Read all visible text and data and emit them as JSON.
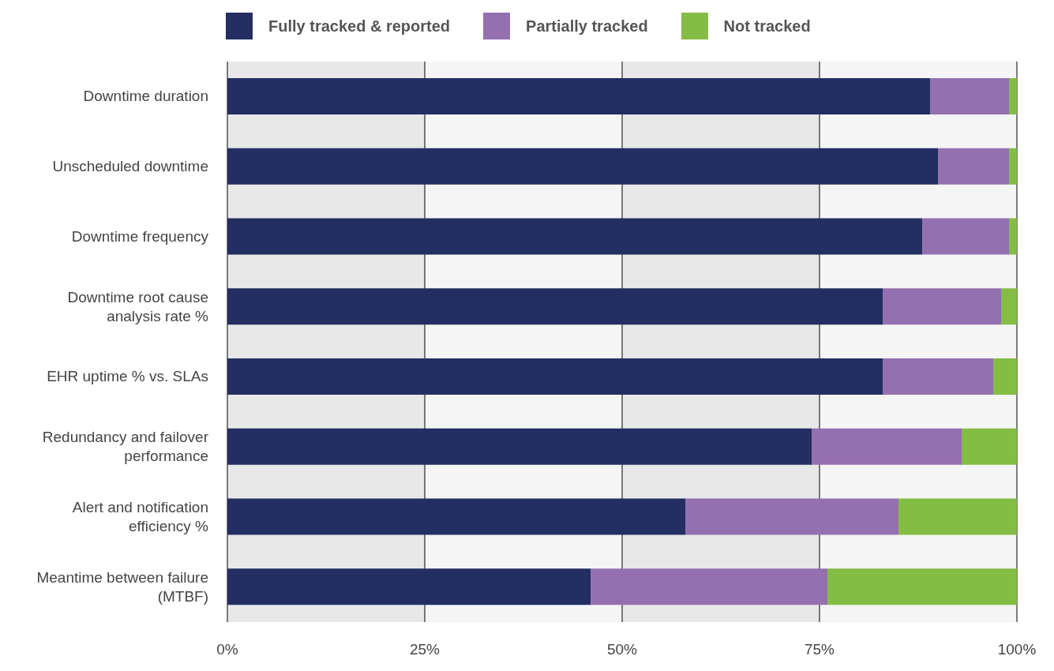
{
  "chart_data": {
    "type": "bar",
    "orientation": "horizontal",
    "stacked": true,
    "categories": [
      "Downtime duration",
      "Unscheduled downtime",
      "Downtime frequency",
      "Downtime root cause analysis rate %",
      "EHR uptime % vs. SLAs",
      "Redundancy and failover performance",
      "Alert and notification efficiency %",
      "Meantime between failure (MTBF)"
    ],
    "series": [
      {
        "name": "Fully tracked & reported",
        "color": "#232e62",
        "values": [
          89,
          90,
          88,
          83,
          83,
          74,
          58,
          46
        ]
      },
      {
        "name": "Partially tracked",
        "color": "#9570b0",
        "values": [
          10,
          9,
          11,
          15,
          14,
          19,
          27,
          30
        ]
      },
      {
        "name": "Not tracked",
        "color": "#84bd44",
        "values": [
          1,
          1,
          1,
          2,
          3,
          7,
          15,
          24
        ]
      }
    ],
    "xlim": [
      0,
      100
    ],
    "xticks": [
      {
        "value": 0,
        "label": "0%"
      },
      {
        "value": 25,
        "label": "25%"
      },
      {
        "value": 50,
        "label": "50%"
      },
      {
        "value": 75,
        "label": "75%"
      },
      {
        "value": 100,
        "label": "100%"
      }
    ],
    "grid": "x",
    "legend": "top"
  }
}
